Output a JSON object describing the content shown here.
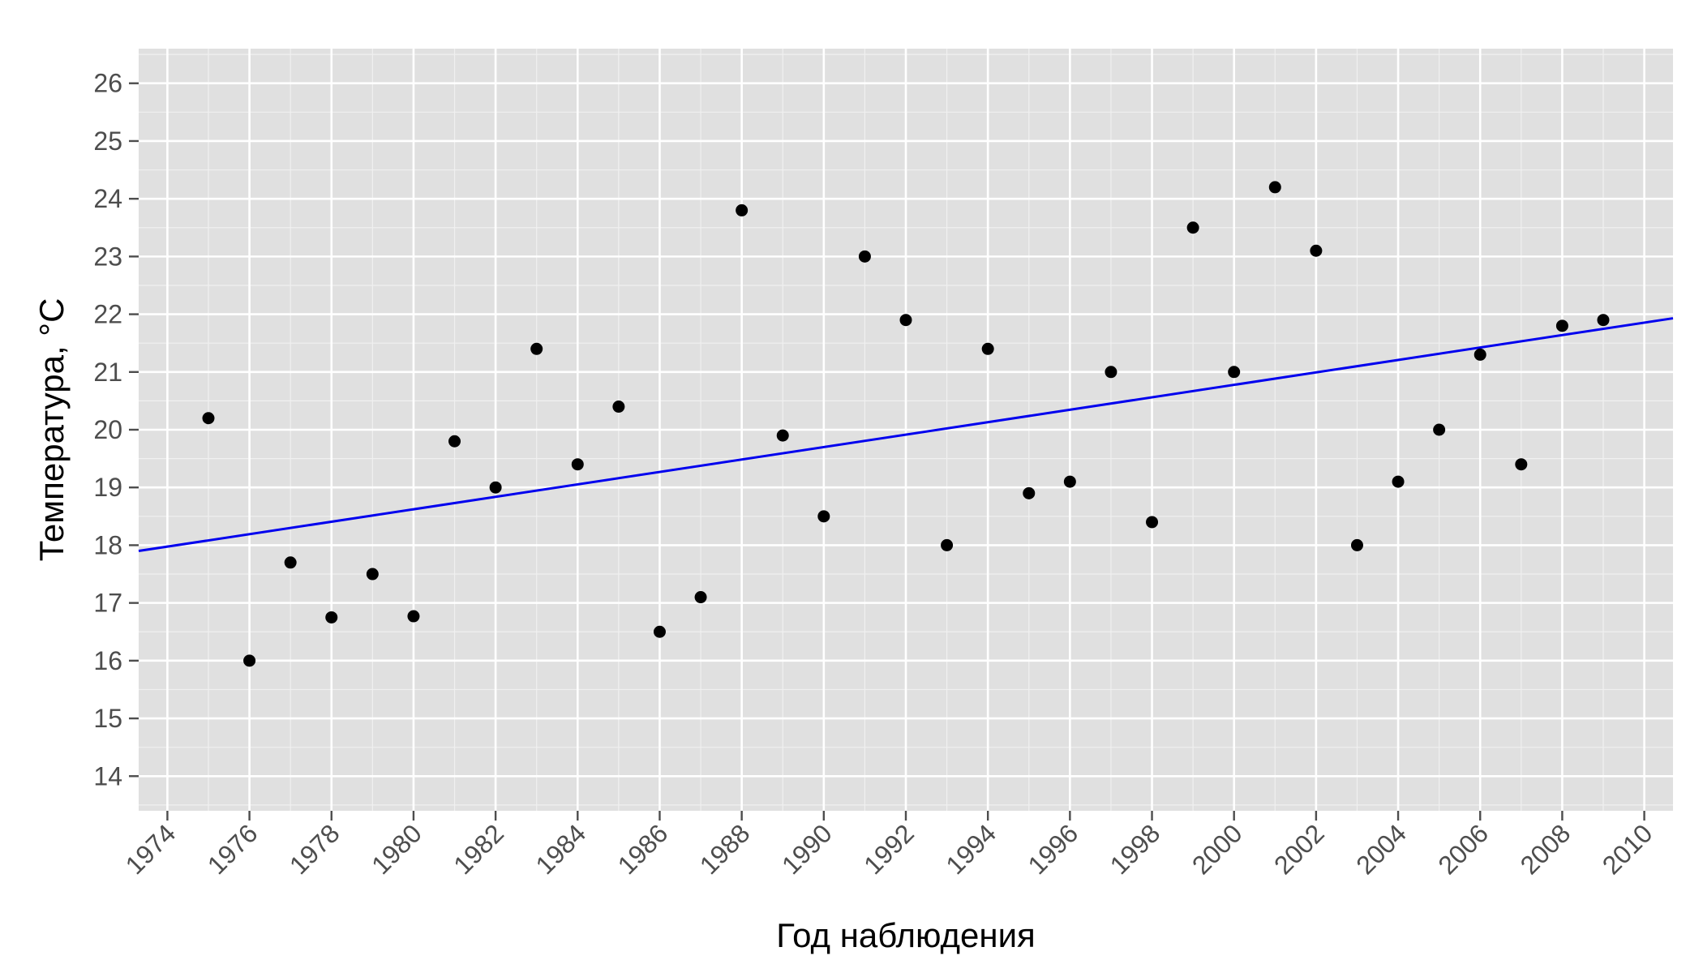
{
  "chart_data": {
    "type": "scatter",
    "title": "",
    "xlabel": "Год наблюдения",
    "ylabel": "Температура, °C",
    "xlim": [
      1973.3,
      2010.7
    ],
    "ylim": [
      13.4,
      26.6
    ],
    "x_ticks": [
      1974,
      1976,
      1978,
      1980,
      1982,
      1984,
      1986,
      1988,
      1990,
      1992,
      1994,
      1996,
      1998,
      2000,
      2002,
      2004,
      2006,
      2008,
      2010
    ],
    "y_ticks": [
      14,
      15,
      16,
      17,
      18,
      19,
      20,
      21,
      22,
      23,
      24,
      25,
      26
    ],
    "grid": true,
    "background": "#e0e0e0",
    "grid_color": "#ffffff",
    "point_color": "#000000",
    "line_color": "#0000ee",
    "points": [
      {
        "x": 1975,
        "y": 20.2
      },
      {
        "x": 1976,
        "y": 16.0
      },
      {
        "x": 1977,
        "y": 17.7
      },
      {
        "x": 1978,
        "y": 16.75
      },
      {
        "x": 1979,
        "y": 17.5
      },
      {
        "x": 1980,
        "y": 16.77
      },
      {
        "x": 1981,
        "y": 19.8
      },
      {
        "x": 1982,
        "y": 19.0
      },
      {
        "x": 1983,
        "y": 21.4
      },
      {
        "x": 1984,
        "y": 19.4
      },
      {
        "x": 1985,
        "y": 20.4
      },
      {
        "x": 1986,
        "y": 16.5
      },
      {
        "x": 1987,
        "y": 17.1
      },
      {
        "x": 1988,
        "y": 23.8
      },
      {
        "x": 1989,
        "y": 19.9
      },
      {
        "x": 1990,
        "y": 18.5
      },
      {
        "x": 1991,
        "y": 23.0
      },
      {
        "x": 1992,
        "y": 21.9
      },
      {
        "x": 1993,
        "y": 18.0
      },
      {
        "x": 1994,
        "y": 21.4
      },
      {
        "x": 1995,
        "y": 18.9
      },
      {
        "x": 1996,
        "y": 19.1
      },
      {
        "x": 1997,
        "y": 21.0
      },
      {
        "x": 1998,
        "y": 18.4
      },
      {
        "x": 1999,
        "y": 23.5
      },
      {
        "x": 2000,
        "y": 21.0
      },
      {
        "x": 2001,
        "y": 24.2
      },
      {
        "x": 2002,
        "y": 23.1
      },
      {
        "x": 2003,
        "y": 18.0
      },
      {
        "x": 2004,
        "y": 19.1
      },
      {
        "x": 2005,
        "y": 20.0
      },
      {
        "x": 2006,
        "y": 21.3
      },
      {
        "x": 2007,
        "y": 19.4
      },
      {
        "x": 2008,
        "y": 21.8
      },
      {
        "x": 2009,
        "y": 21.9
      }
    ],
    "trend_line": {
      "start": {
        "x": 1973.3,
        "y": 17.9
      },
      "end": {
        "x": 2010.7,
        "y": 21.93
      }
    }
  }
}
